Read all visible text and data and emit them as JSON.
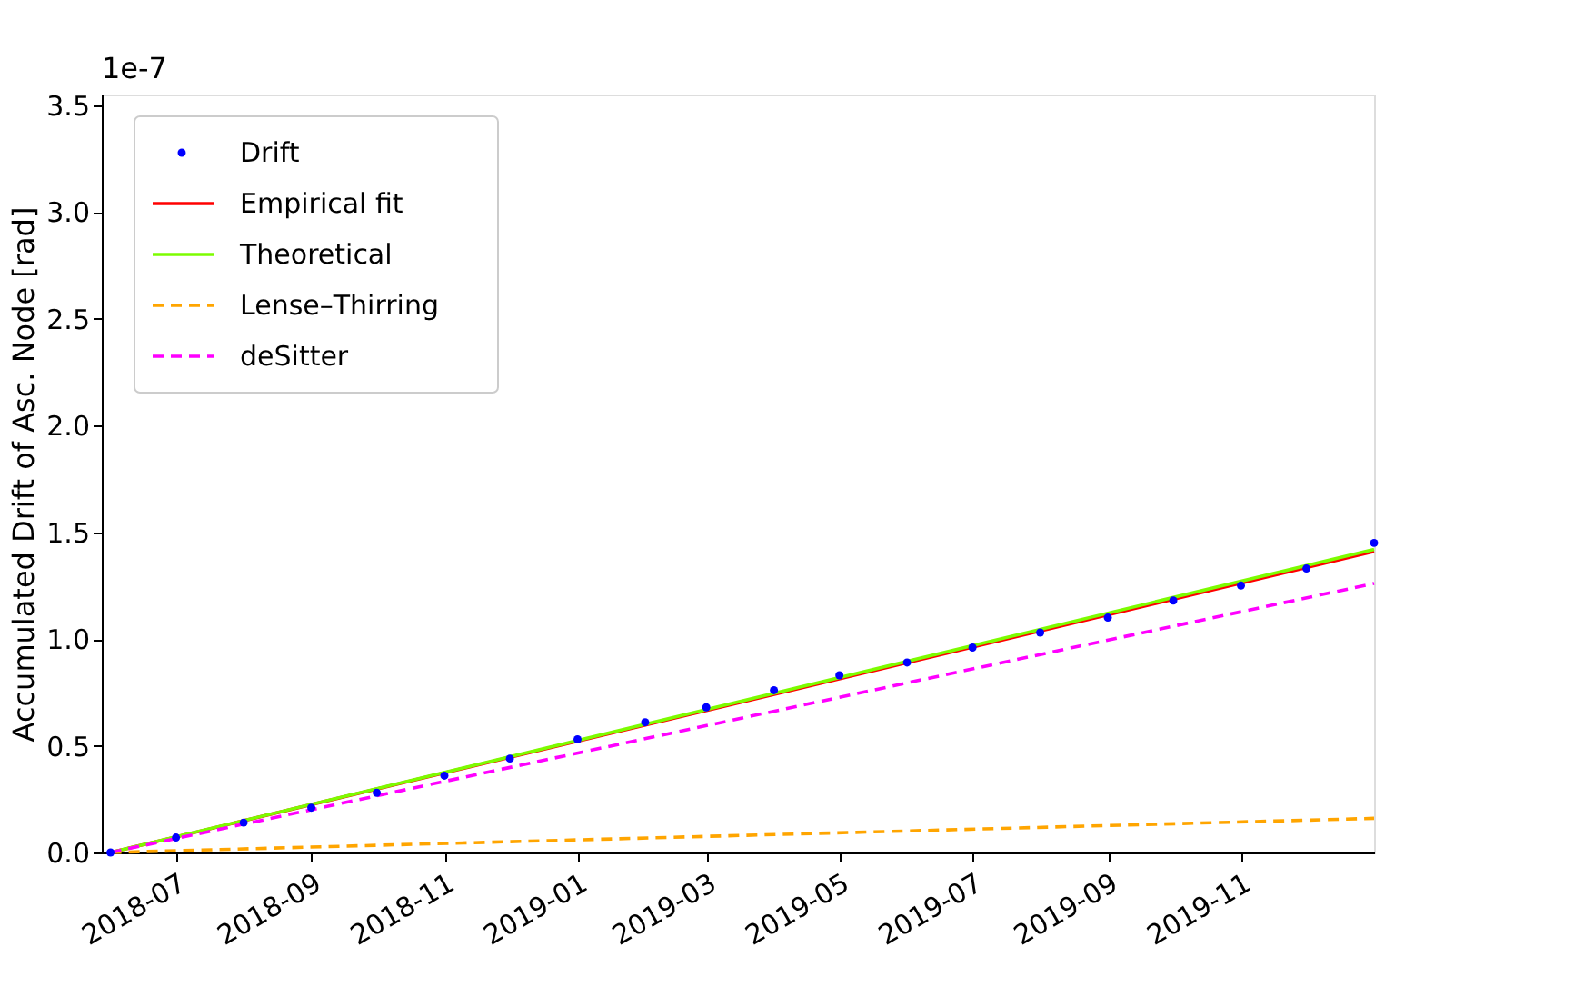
{
  "chart_data": {
    "type": "line",
    "ylabel": "Accumulated Drift of Asc. Node [rad]",
    "annotations": [
      "1e-7"
    ],
    "xlim": [
      "2018-05-28",
      "2020-01-01"
    ],
    "xticks": [
      "2018-07",
      "2018-09",
      "2018-11",
      "2019-01",
      "2019-03",
      "2019-05",
      "2019-07",
      "2019-09",
      "2019-11"
    ],
    "ylim": [
      0,
      3.55
    ],
    "yticks": [
      {
        "value": 0,
        "label": "0.0"
      },
      0.5,
      {
        "value": 1,
        "label": "1.0"
      },
      1.5,
      {
        "value": 2,
        "label": "2.0"
      },
      2.5,
      {
        "value": 3,
        "label": "3.0"
      },
      3.5
    ],
    "grid": false,
    "legend": "top left",
    "series": [
      {
        "name": "Drift",
        "type": "scatter",
        "marker": "circle",
        "color": "#0000ff",
        "x": [
          "2018-06-01",
          "2018-07-01",
          "2018-08-01",
          "2018-09-01",
          "2018-10-01",
          "2018-11-01",
          "2018-12-01",
          "2019-01-01",
          "2019-02-01",
          "2019-03-01",
          "2019-04-01",
          "2019-05-01",
          "2019-06-01",
          "2019-07-01",
          "2019-08-01",
          "2019-09-01",
          "2019-10-01",
          "2019-11-01",
          "2019-12-01",
          "2020-01-01"
        ],
        "values": [
          0,
          0.07,
          0.14,
          0.21,
          0.28,
          0.36,
          0.44,
          0.53,
          0.61,
          0.68,
          0.76,
          0.83,
          0.89,
          0.96,
          1.03,
          1.1,
          1.18,
          1.25,
          1.33,
          1.45
        ]
      },
      {
        "name": "Empirical fit",
        "type": "line",
        "line_style": "solid",
        "color": "#ff0000",
        "x": [
          "2018-06-01",
          "2020-01-01"
        ],
        "values": [
          0,
          1.41
        ]
      },
      {
        "name": "Theoretical",
        "type": "line",
        "line_style": "solid",
        "color": "#7cfc00",
        "x": [
          "2018-06-01",
          "2020-01-01"
        ],
        "values": [
          0,
          1.42
        ]
      },
      {
        "name": "Lense–Thirring",
        "type": "line",
        "line_style": "dashed",
        "color": "#ffa500",
        "x": [
          "2018-06-01",
          "2020-01-01"
        ],
        "values": [
          0,
          0.16
        ]
      },
      {
        "name": "deSitter",
        "type": "line",
        "line_style": "dashed",
        "color": "#ff00ff",
        "x": [
          "2018-06-01",
          "2020-01-01"
        ],
        "values": [
          0,
          1.26
        ]
      }
    ]
  }
}
